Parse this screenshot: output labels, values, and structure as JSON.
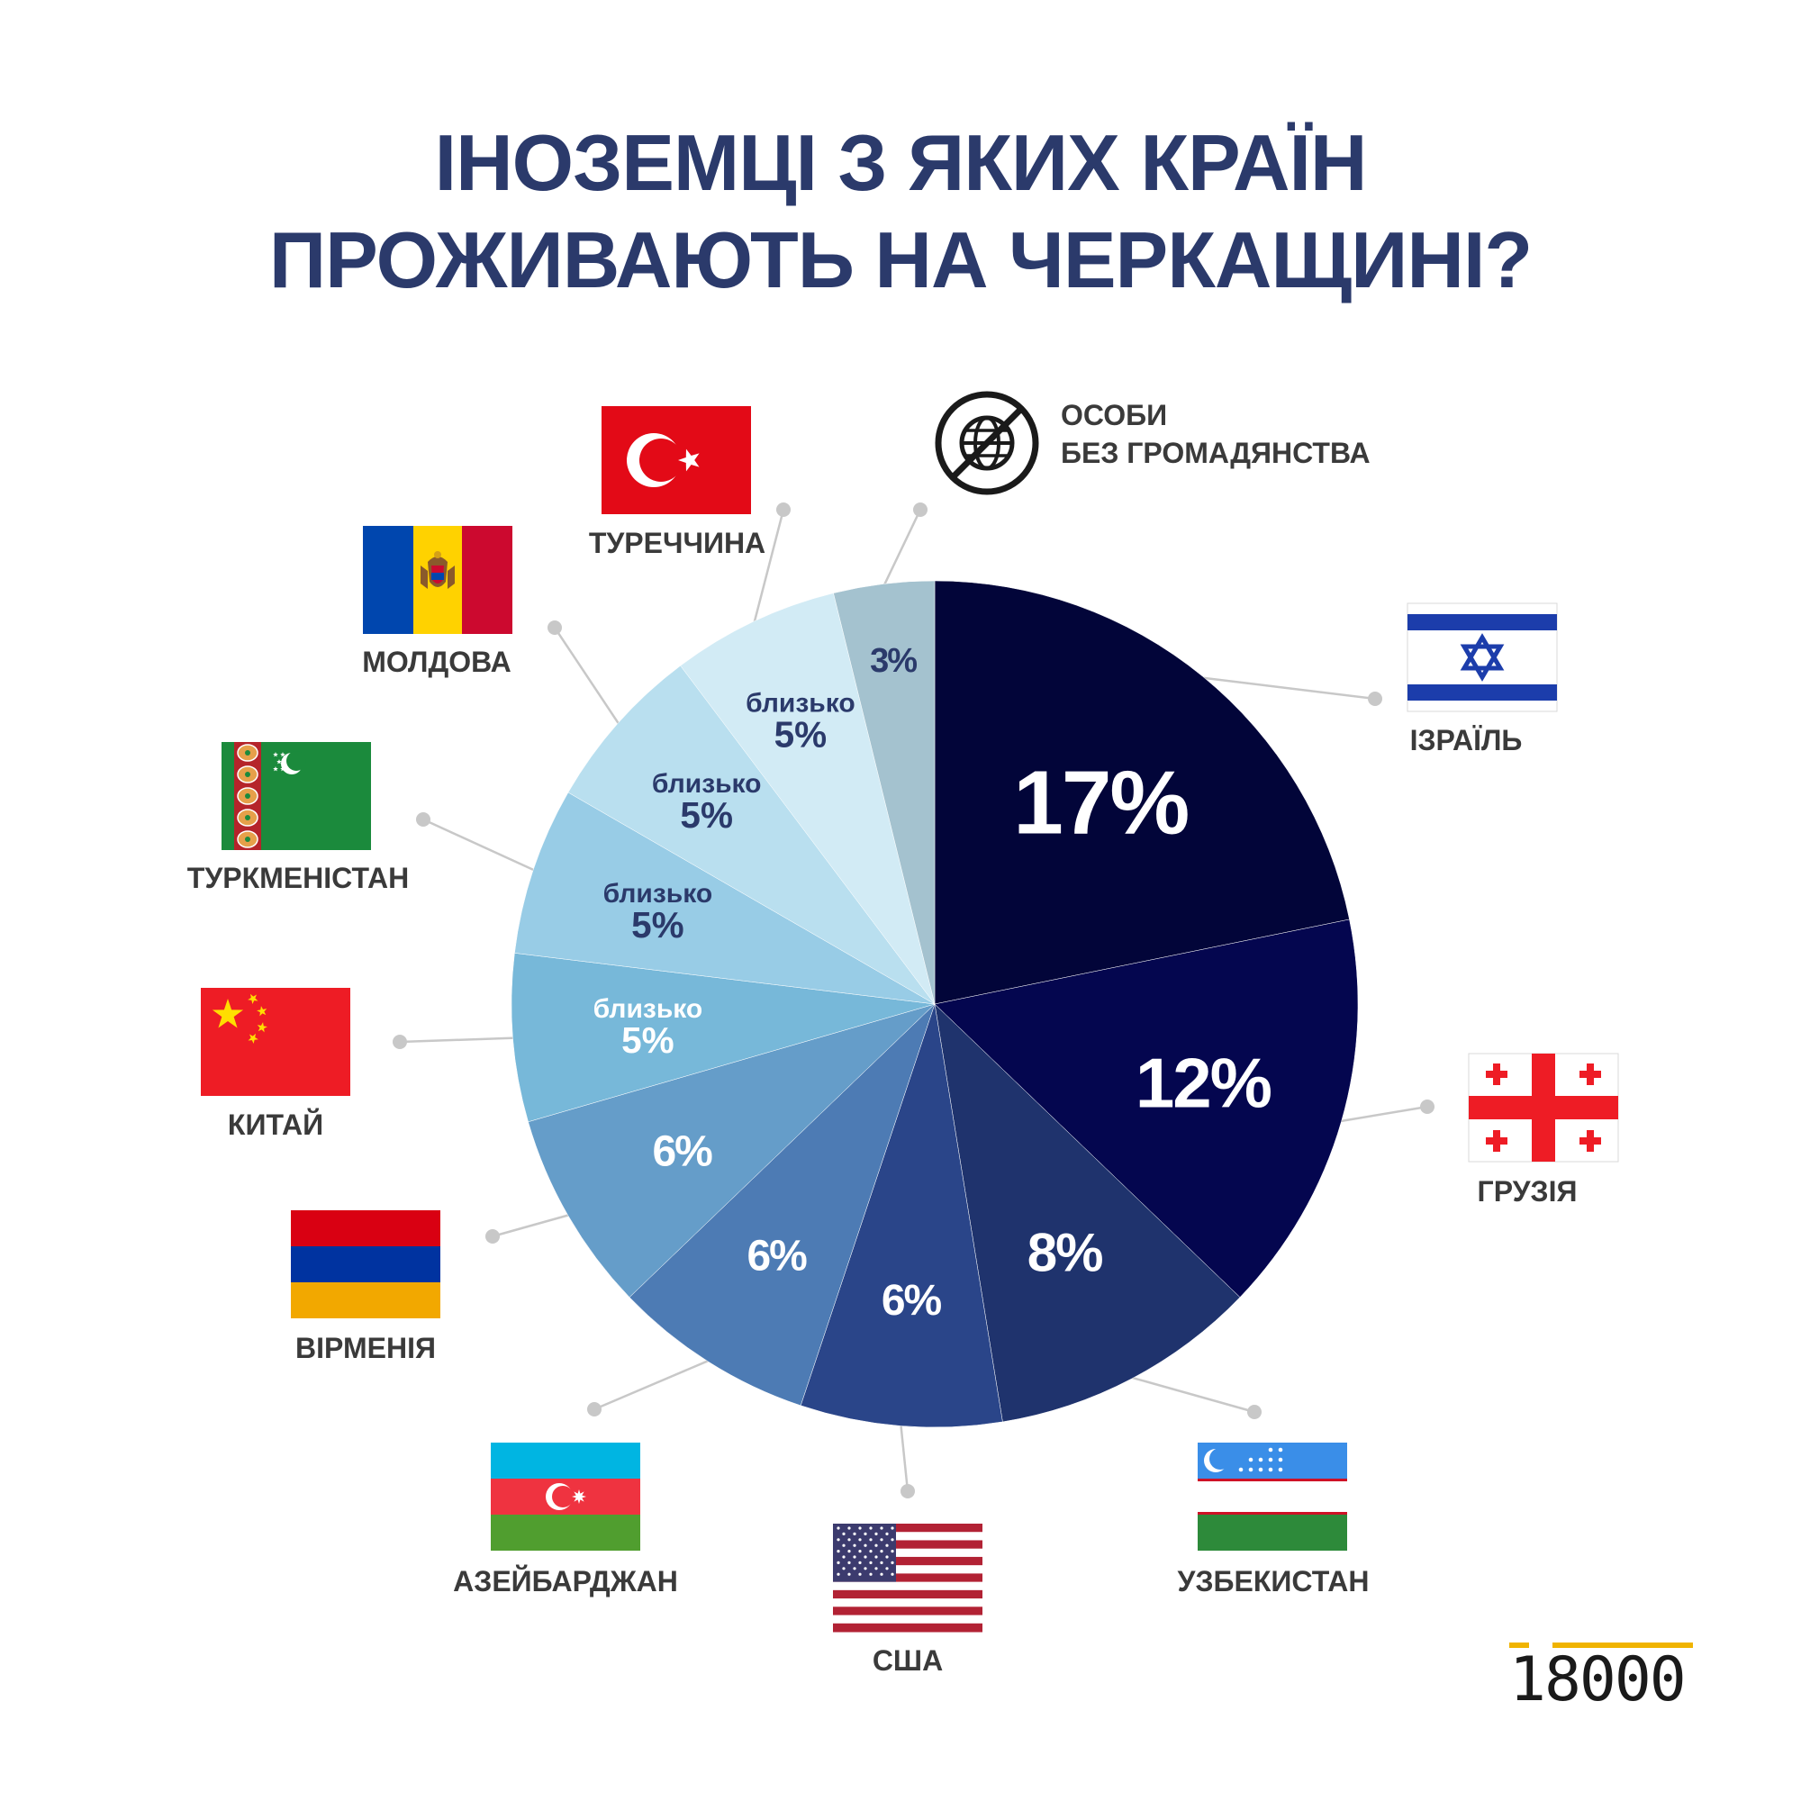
{
  "title": {
    "line1": "ІНОЗЕМЦІ З ЯКИХ КРАЇН",
    "line2": "ПРОЖИВАЮТЬ НА ЧЕРКАЩИНІ?"
  },
  "chart_data": {
    "type": "pie",
    "start": "12 o'clock, clockwise",
    "slices": [
      {
        "label": "ІЗРАЇЛЬ",
        "value": 17,
        "display": "17%",
        "prefix": "",
        "color": "#020539",
        "text_color": "#ffffff",
        "icon": "flag-israel-icon"
      },
      {
        "label": "ГРУЗІЯ",
        "value": 12,
        "display": "12%",
        "prefix": "",
        "color": "#04064f",
        "text_color": "#ffffff",
        "icon": "flag-georgia-icon"
      },
      {
        "label": "УЗБЕКИСТАН",
        "value": 8,
        "display": "8%",
        "prefix": "",
        "color": "#1f336d",
        "text_color": "#ffffff",
        "icon": "flag-uzbekistan-icon"
      },
      {
        "label": "США",
        "value": 6,
        "display": "6%",
        "prefix": "",
        "color": "#2a4589",
        "text_color": "#ffffff",
        "icon": "flag-usa-icon"
      },
      {
        "label": "АЗЕЙБАРДЖАН",
        "value": 6,
        "display": "6%",
        "prefix": "",
        "color": "#4d7bb4",
        "text_color": "#ffffff",
        "icon": "flag-azerbaijan-icon"
      },
      {
        "label": "ВІРМЕНІЯ",
        "value": 6,
        "display": "6%",
        "prefix": "",
        "color": "#659dc9",
        "text_color": "#ffffff",
        "icon": "flag-armenia-icon"
      },
      {
        "label": "КИТАЙ",
        "value": 5,
        "display": "5%",
        "prefix": "близько",
        "color": "#77b8d9",
        "text_color": "#ffffff",
        "icon": "flag-china-icon"
      },
      {
        "label": "ТУРКМЕНІСТАН",
        "value": 5,
        "display": "5%",
        "prefix": "близько",
        "color": "#98cce6",
        "text_color": "#2b3a6b",
        "icon": "flag-turkmenistan-icon"
      },
      {
        "label": "МОЛДОВА",
        "value": 5,
        "display": "5%",
        "prefix": "близько",
        "color": "#b9dfef",
        "text_color": "#2b3a6b",
        "icon": "flag-moldova-icon"
      },
      {
        "label": "ТУРЕЧЧИНА",
        "value": 5,
        "display": "5%",
        "prefix": "близько",
        "color": "#d2ebf5",
        "text_color": "#2b3a6b",
        "icon": "flag-turkey-icon"
      },
      {
        "label": "ОСОБИ БЕЗ ГРОМАДЯНСТВА",
        "label_lines": [
          "ОСОБИ",
          "БЕЗ ГРОМАДЯНСТВА"
        ],
        "value": 3,
        "display": "3%",
        "prefix": "",
        "color": "#a4c2cf",
        "text_color": "#2b3a6b",
        "icon": "stateless-globe-icon"
      }
    ]
  },
  "logo": {
    "text": "18000",
    "accent_color": "#f0b400"
  }
}
